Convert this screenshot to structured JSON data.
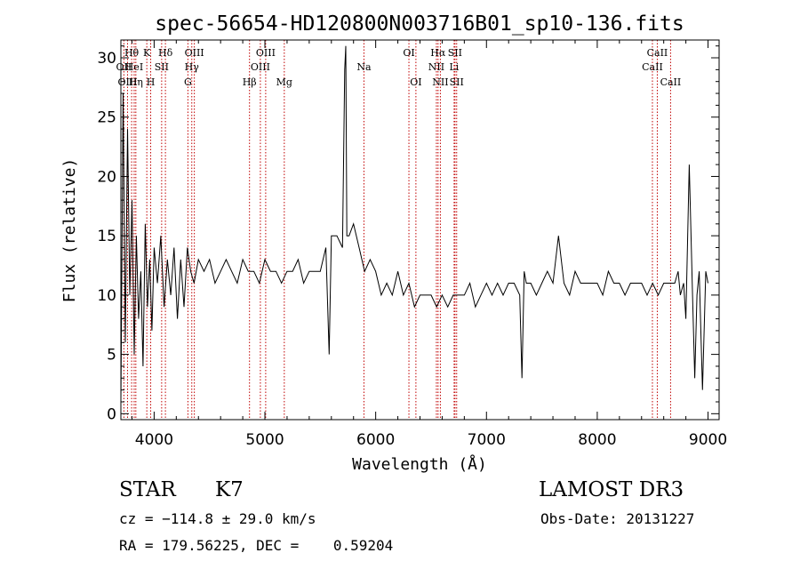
{
  "chart_data": {
    "type": "line",
    "title": "spec-56654-HD120800N003716B01_sp10-136.fits",
    "xlabel": "Wavelength (Å)",
    "ylabel": "Flux (relative)",
    "xlim": [
      3700,
      9100
    ],
    "ylim": [
      -0.5,
      31.5
    ],
    "xticks": [
      4000,
      5000,
      6000,
      7000,
      8000,
      9000
    ],
    "yticks": [
      0,
      5,
      10,
      15,
      20,
      25,
      30
    ],
    "series": [
      {
        "name": "flux",
        "x": [
          3700,
          3720,
          3740,
          3760,
          3780,
          3800,
          3820,
          3840,
          3860,
          3880,
          3900,
          3920,
          3940,
          3960,
          3980,
          4000,
          4030,
          4060,
          4090,
          4120,
          4150,
          4180,
          4210,
          4240,
          4270,
          4300,
          4330,
          4360,
          4400,
          4450,
          4500,
          4550,
          4600,
          4650,
          4700,
          4750,
          4800,
          4850,
          4900,
          4950,
          5000,
          5050,
          5100,
          5150,
          5200,
          5250,
          5300,
          5350,
          5400,
          5450,
          5500,
          5550,
          5580,
          5600,
          5650,
          5700,
          5720,
          5730,
          5740,
          5760,
          5800,
          5850,
          5900,
          5950,
          6000,
          6050,
          6100,
          6150,
          6200,
          6250,
          6300,
          6350,
          6400,
          6450,
          6500,
          6550,
          6600,
          6650,
          6700,
          6750,
          6800,
          6850,
          6900,
          6950,
          7000,
          7050,
          7100,
          7150,
          7200,
          7250,
          7300,
          7320,
          7340,
          7360,
          7400,
          7450,
          7500,
          7550,
          7600,
          7650,
          7700,
          7750,
          7800,
          7850,
          7900,
          7950,
          8000,
          8050,
          8100,
          8150,
          8200,
          8250,
          8300,
          8350,
          8400,
          8450,
          8500,
          8550,
          8600,
          8650,
          8700,
          8730,
          8750,
          8780,
          8800,
          8830,
          8860,
          8880,
          8900,
          8920,
          8950,
          8980,
          9000
        ],
        "y": [
          1,
          27,
          6,
          24,
          10,
          18,
          5,
          15,
          8,
          12,
          4,
          16,
          9,
          13,
          7,
          14,
          11,
          15,
          9,
          13,
          10,
          14,
          8,
          13,
          9,
          14,
          12,
          11,
          13,
          12,
          13,
          11,
          12,
          13,
          12,
          11,
          13,
          12,
          12,
          11,
          13,
          12,
          12,
          11,
          12,
          12,
          13,
          11,
          12,
          12,
          12,
          14,
          5,
          15,
          15,
          14,
          29,
          31,
          15,
          15,
          16,
          14,
          12,
          13,
          12,
          10,
          11,
          10,
          12,
          10,
          11,
          9,
          10,
          10,
          10,
          9,
          10,
          9,
          10,
          10,
          10,
          11,
          9,
          10,
          11,
          10,
          11,
          10,
          11,
          11,
          10,
          3,
          12,
          11,
          11,
          10,
          11,
          12,
          11,
          15,
          11,
          10,
          12,
          11,
          11,
          11,
          11,
          10,
          12,
          11,
          11,
          10,
          11,
          11,
          11,
          10,
          11,
          10,
          11,
          11,
          11,
          12,
          10,
          11,
          8,
          21,
          10,
          3,
          10,
          12,
          2,
          12,
          11
        ]
      }
    ],
    "lines": [
      {
        "label": "Hθ",
        "x": 3797,
        "row": 1
      },
      {
        "label": "OII",
        "x": 3727,
        "row": 2
      },
      {
        "label": "OIII",
        "x": 3760,
        "row": 3
      },
      {
        "label": "HeI",
        "x": 3820,
        "row": 2
      },
      {
        "label": "Hη",
        "x": 3835,
        "row": 3
      },
      {
        "label": "K",
        "x": 3934,
        "row": 1
      },
      {
        "label": "H",
        "x": 3969,
        "row": 3
      },
      {
        "label": "SII",
        "x": 4068,
        "row": 2
      },
      {
        "label": "Hδ",
        "x": 4102,
        "row": 1
      },
      {
        "label": "OIII",
        "x": 4363,
        "row": 1
      },
      {
        "label": "Hγ",
        "x": 4340,
        "row": 2
      },
      {
        "label": "G",
        "x": 4305,
        "row": 3
      },
      {
        "label": "Hβ",
        "x": 4861,
        "row": 3
      },
      {
        "label": "OIII",
        "x": 5007,
        "row": 1
      },
      {
        "label": "OIII",
        "x": 4959,
        "row": 2
      },
      {
        "label": "Mg",
        "x": 5175,
        "row": 3
      },
      {
        "label": "Na",
        "x": 5894,
        "row": 2
      },
      {
        "label": "OI",
        "x": 6300,
        "row": 1
      },
      {
        "label": "OI",
        "x": 6363,
        "row": 3
      },
      {
        "label": "Hα",
        "x": 6563,
        "row": 1
      },
      {
        "label": "NII",
        "x": 6548,
        "row": 2
      },
      {
        "label": "NII",
        "x": 6584,
        "row": 3
      },
      {
        "label": "SII",
        "x": 6716,
        "row": 1
      },
      {
        "label": "Li",
        "x": 6708,
        "row": 2
      },
      {
        "label": "SII",
        "x": 6731,
        "row": 3
      },
      {
        "label": "CaII",
        "x": 8498,
        "row": 2
      },
      {
        "label": "CaII",
        "x": 8542,
        "row": 1
      },
      {
        "label": "CaII",
        "x": 8662,
        "row": 3
      }
    ]
  },
  "info": {
    "object_class": "STAR",
    "subclass": "K7",
    "survey": "LAMOST DR3",
    "cz": "cz = −114.8 ± 29.0 km/s",
    "obs_date": "Obs-Date: 20131227",
    "coords": "RA = 179.56225, DEC =    0.59204"
  }
}
